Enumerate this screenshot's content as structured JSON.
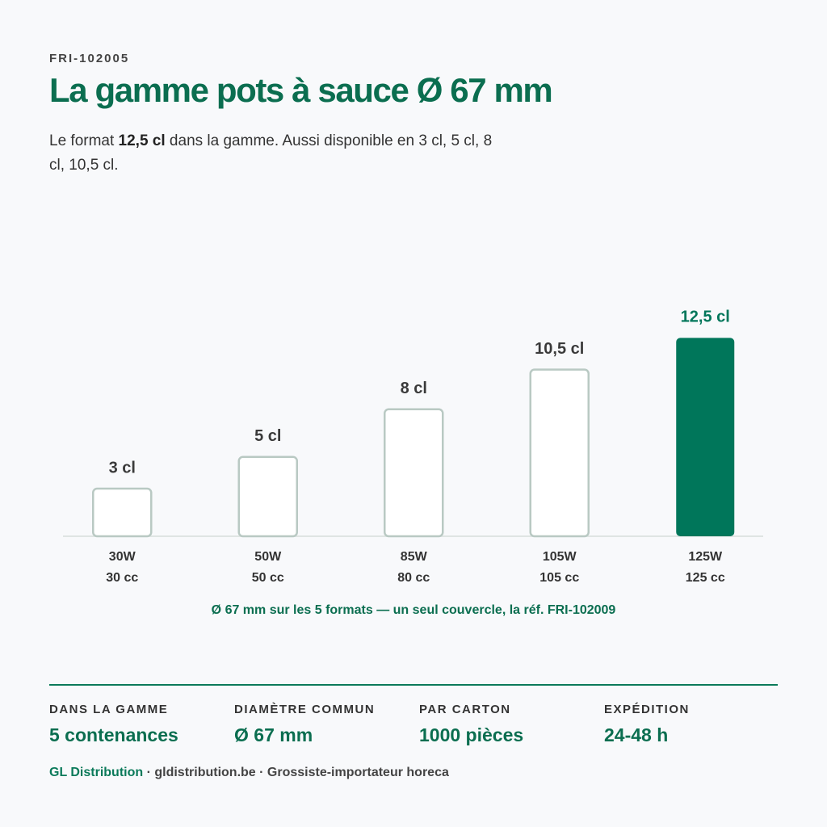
{
  "header": {
    "code": "FRI-102005",
    "title": "La gamme pots à sauce Ø 67 mm",
    "subtitle": [
      "Le format ",
      "12,5 cl",
      " dans la gamme. Aussi disponible en 3 cl, 5 cl, 8 cl, 10,5 cl."
    ]
  },
  "chart_data": {
    "type": "bar",
    "categories": [
      "30W",
      "50W",
      "85W",
      "105W",
      "125W"
    ],
    "category_sublabels": [
      "30 cc",
      "50 cc",
      "80 cc",
      "105 cc",
      "125 cc"
    ],
    "values": [
      3,
      5,
      8,
      10.5,
      12.5
    ],
    "value_labels": [
      "3 cl",
      "5 cl",
      "8 cl",
      "10,5 cl",
      "12,5 cl"
    ],
    "colors": [
      "#ffffff",
      "#ffffff",
      "#ffffff",
      "#ffffff",
      "#00765a"
    ],
    "annotation": "Ø 67 mm sur les 5 formats — un seul couvercle, la réf. FRI-102009"
  },
  "stats": [
    {
      "label": "DANS LA GAMME",
      "value": "5 contenances"
    },
    {
      "label": "DIAMÈTRE COMMUN",
      "value": "Ø 67 mm"
    },
    {
      "label": "PAR CARTON",
      "value": "1000 pièces"
    },
    {
      "label": "EXPÉDITION",
      "value": "24-48 h"
    }
  ],
  "footer": {
    "brand": "GL Distribution",
    "text": "· gldistribution.be · Grossiste-importateur horeca"
  }
}
